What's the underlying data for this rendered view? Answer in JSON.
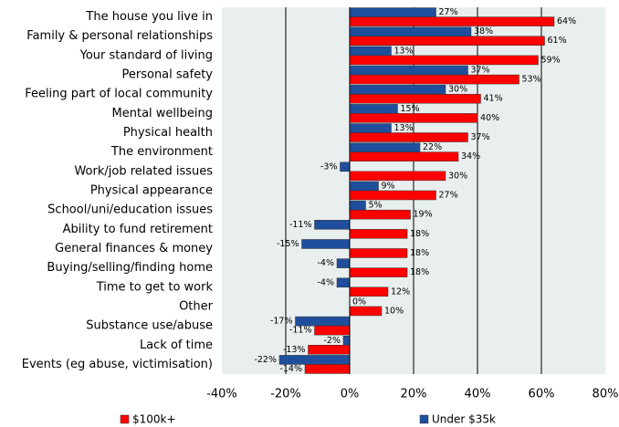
{
  "chart_data": {
    "type": "bar",
    "orientation": "horizontal",
    "categories": [
      "The house you live in",
      "Family & personal relationships",
      "Your standard of living",
      "Personal safety",
      "Feeling part of local community",
      "Mental wellbeing",
      "Physical health",
      "The environment",
      "Work/job related issues",
      "Physical appearance",
      "School/uni/education issues",
      "Ability to fund retirement",
      "General finances & money",
      "Buying/selling/finding home",
      "Time to get to work",
      "Other",
      "Substance use/abuse",
      "Lack of time",
      "Events (eg abuse, victimisation)"
    ],
    "series": [
      {
        "name": "$100k+",
        "color": "#ff0000",
        "values": [
          64,
          61,
          59,
          53,
          41,
          40,
          37,
          34,
          30,
          27,
          19,
          18,
          18,
          18,
          12,
          10,
          -11,
          -13,
          -14
        ],
        "value_labels": [
          "64%",
          "61%",
          "59%",
          "53%",
          "41%",
          "40%",
          "37%",
          "34%",
          "30%",
          "27%",
          "19%",
          "18%",
          "18%",
          "18%",
          "12%",
          "10%",
          "-11%",
          "-13%",
          "-14%"
        ]
      },
      {
        "name": "Under $35k",
        "color": "#1f4e9c",
        "values": [
          27,
          38,
          13,
          37,
          30,
          15,
          13,
          22,
          -3,
          9,
          5,
          -11,
          -15,
          -4,
          -4,
          0,
          -17,
          -2,
          -22
        ],
        "value_labels": [
          "27%",
          "38%",
          "13%",
          "37%",
          "30%",
          "15%",
          "13%",
          "22%",
          "-3%",
          "9%",
          "5%",
          "-11%",
          "-15%",
          "-4%",
          "-4%",
          "0%",
          "-17%",
          "-2%",
          "-22%"
        ]
      }
    ],
    "xlim": [
      -40,
      80
    ],
    "xticks": [
      {
        "value": -40,
        "label": "-40%"
      },
      {
        "value": -20,
        "label": "-20%"
      },
      {
        "value": 0,
        "label": "0%"
      },
      {
        "value": 20,
        "label": "20%"
      },
      {
        "value": 40,
        "label": "40%"
      },
      {
        "value": 60,
        "label": "60%"
      },
      {
        "value": 80,
        "label": "80%"
      }
    ],
    "grid": true,
    "legend": "bottom"
  }
}
